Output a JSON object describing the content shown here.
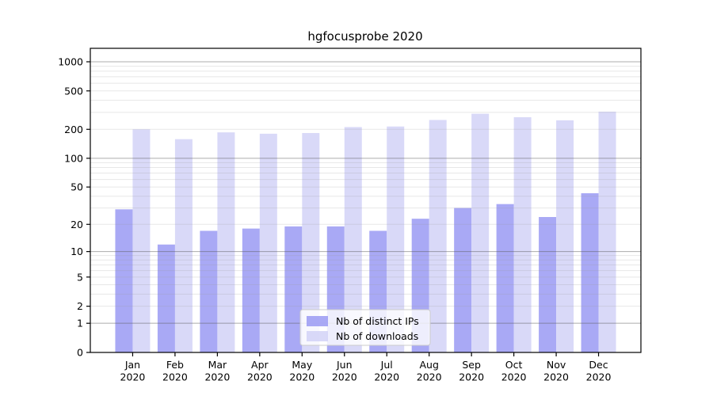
{
  "title": "hgfocusprobe 2020",
  "colors": {
    "distinct_ips": "#9a9af3",
    "downloads": "#d2d2f7",
    "axis": "#000000",
    "grid_major": "rgba(90,90,90,0.5)",
    "grid_minor": "rgba(160,160,160,0.25)",
    "legend_bg": "rgba(255,255,255,0.8)",
    "legend_border": "#cccccc"
  },
  "legend": {
    "items": [
      {
        "label": "Nb of distinct IPs",
        "color_key": "distinct_ips"
      },
      {
        "label": "Nb of downloads",
        "color_key": "downloads"
      }
    ]
  },
  "chart_data": {
    "type": "bar",
    "title": "hgfocusprobe 2020",
    "categories": [
      "Jan",
      "Feb",
      "Mar",
      "Apr",
      "May",
      "Jun",
      "Jul",
      "Aug",
      "Sep",
      "Oct",
      "Nov",
      "Dec"
    ],
    "category_year": "2020",
    "series": [
      {
        "name": "Nb of distinct IPs",
        "values": [
          29,
          12,
          17,
          18,
          19,
          19,
          17,
          23,
          30,
          33,
          24,
          43
        ]
      },
      {
        "name": "Nb of downloads",
        "values": [
          200,
          158,
          186,
          180,
          183,
          211,
          214,
          250,
          290,
          267,
          248,
          305
        ]
      }
    ],
    "xlabel": "",
    "ylabel": "",
    "y_scale": "log1p",
    "y_ticks": [
      0,
      1,
      2,
      5,
      10,
      20,
      50,
      100,
      200,
      500,
      1000
    ],
    "ylim": [
      0,
      1380
    ],
    "grid": true,
    "legend_position": "lower center"
  }
}
